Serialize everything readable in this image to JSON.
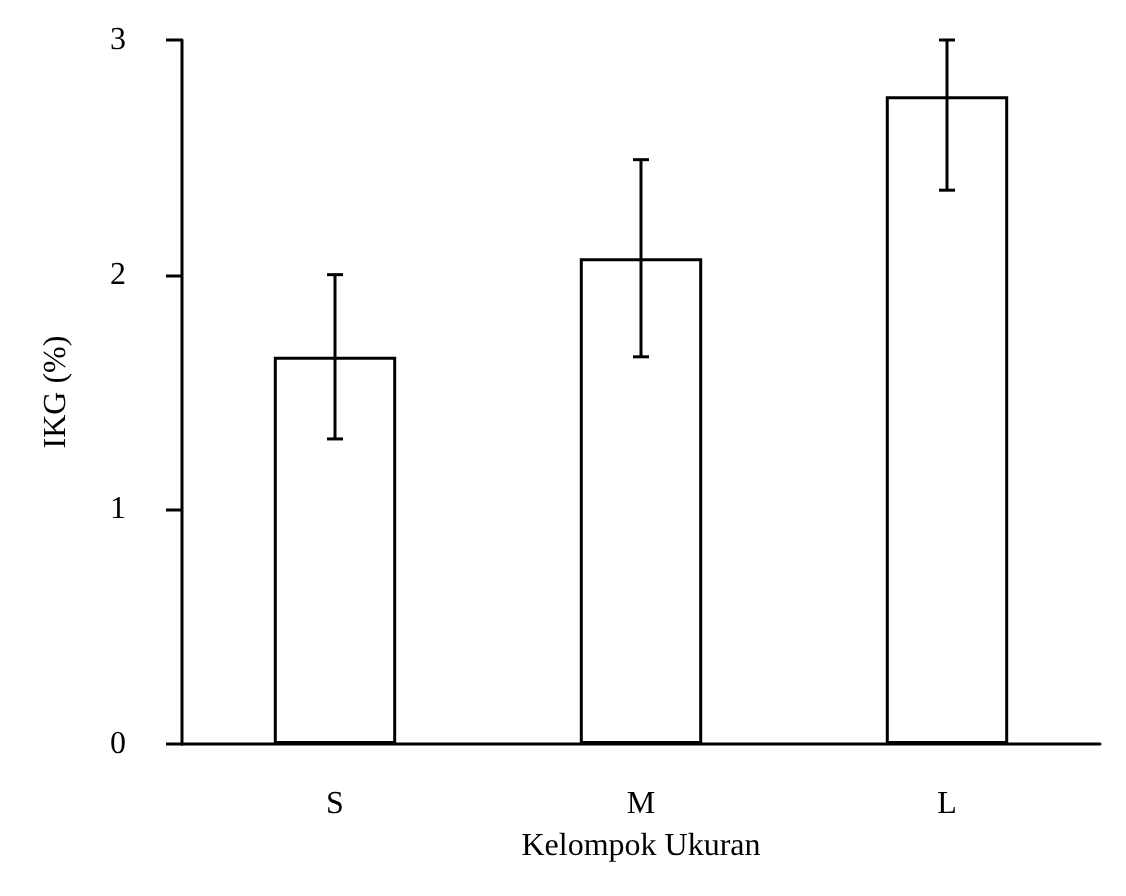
{
  "chart_data": {
    "type": "bar",
    "xlabel": "Kelompok Ukuran",
    "ylabel": "IKG (%)",
    "categories": [
      "S",
      "M",
      "L"
    ],
    "values": [
      1.65,
      2.07,
      2.76
    ],
    "errors": [
      [
        1.3,
        2.0
      ],
      [
        1.65,
        2.49
      ],
      [
        2.36,
        3.0
      ]
    ],
    "color": "#ffffff",
    "ylim": [
      0,
      3
    ],
    "yticks": [
      0,
      1,
      2,
      3
    ],
    "grid": false
  }
}
